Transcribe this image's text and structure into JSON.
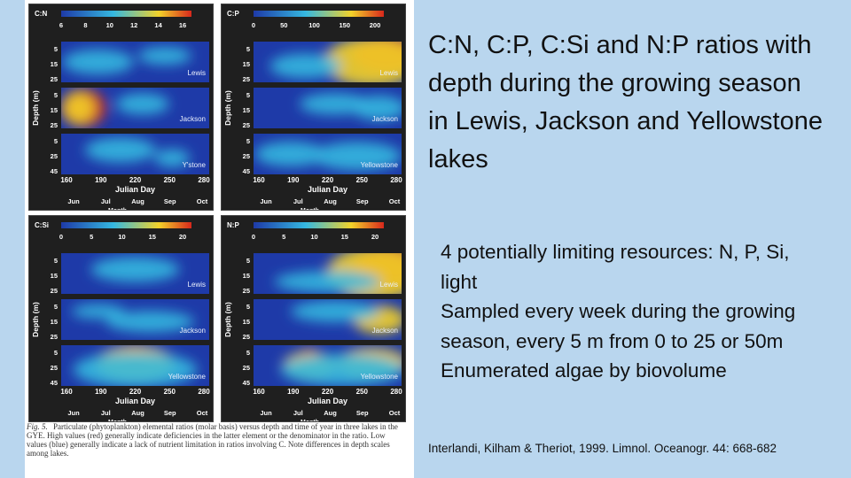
{
  "slide": {
    "title": "C:N, C:P, C:Si and N:P ratios with depth during the growing season in Lewis, Jackson and Yellowstone lakes",
    "bullets": [
      "4 potentially limiting resources: N, P, Si, light",
      "Sampled every week during the growing season, every 5 m from 0 to 25 or 50m",
      "Enumerated algae by biovolume"
    ],
    "citation": "Interlandi, Kilham & Theriot, 1999.  Limnol. Oceanogr.  44: 668-682"
  },
  "figure": {
    "caption_label": "Fig. 5.",
    "caption_text": "Particulate (phytoplankton) elemental ratios (molar basis) versus depth and time of year in three lakes in the GYE. High values (red) generally indicate deficiencies in the latter element or the denominator in the ratio. Low values (blue) generally indicate a lack of nutrient limitation in ratios involving C. Note differences in depth scales among lakes.",
    "y_axis_label": "Depth (m)",
    "x_axis_label": "Julian Day",
    "month_label": "Month",
    "x_ticks": [
      "160",
      "190",
      "220",
      "250",
      "280"
    ],
    "months": [
      "Jun",
      "Jul",
      "Aug",
      "Sep",
      "Oct"
    ],
    "lakes": [
      "Lewis",
      "Jackson",
      "Yellowstone"
    ],
    "depth_ticks": {
      "Lewis": [
        "5",
        "15",
        "25"
      ],
      "Jackson": [
        "5",
        "15",
        "25"
      ],
      "Yellowstone": [
        "5",
        "25",
        "45"
      ]
    },
    "colors": {
      "low": "#1e3aa8",
      "mid": "#35b8e0",
      "high": "#f2d22a",
      "max": "#d8281c"
    },
    "panels": [
      {
        "ratio": "C:N",
        "scale_ticks": [
          "6",
          "8",
          "10",
          "12",
          "14",
          "16"
        ],
        "lake_labels": [
          "Lewis",
          "Jackson",
          "Y'stone"
        ]
      },
      {
        "ratio": "C:P",
        "scale_ticks": [
          "0",
          "50",
          "100",
          "150",
          "200"
        ],
        "lake_labels": [
          "Lewis",
          "Jackson",
          "Yellowstone"
        ]
      },
      {
        "ratio": "C:Si",
        "scale_ticks": [
          "0",
          "5",
          "10",
          "15",
          "20"
        ],
        "lake_labels": [
          "Lewis",
          "Jackson",
          "Yellowstone"
        ]
      },
      {
        "ratio": "N:P",
        "scale_ticks": [
          "0",
          "5",
          "10",
          "15",
          "20"
        ],
        "lake_labels": [
          "Lewis",
          "Jackson",
          "Yellowstone"
        ]
      }
    ]
  }
}
